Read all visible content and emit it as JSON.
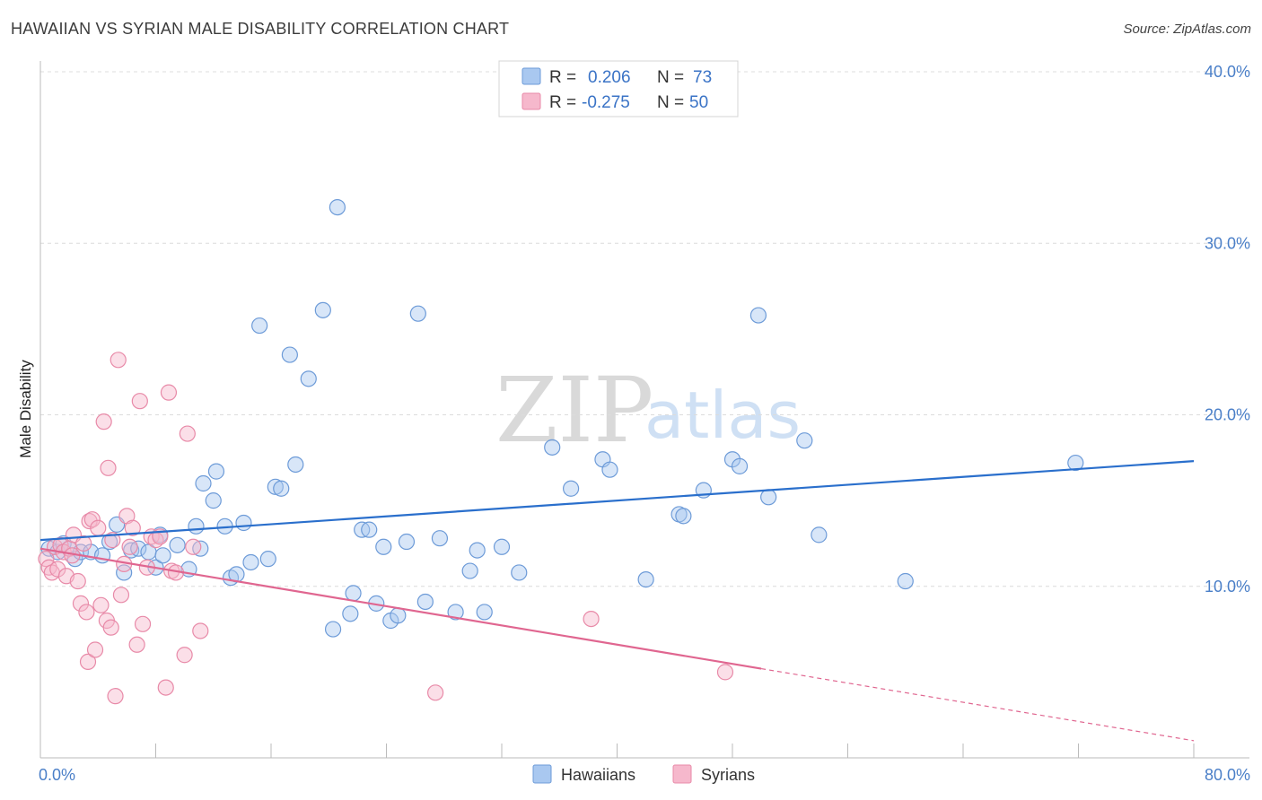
{
  "header": {
    "title": "HAWAIIAN VS SYRIAN MALE DISABILITY CORRELATION CHART",
    "source": "Source: ZipAtlas.com"
  },
  "watermark": {
    "zip": "ZIP",
    "atlas": "atlas"
  },
  "legend": {
    "rows": [
      {
        "r_label": "R =",
        "r_value": "0.206",
        "n_label": "N =",
        "n_value": "73"
      },
      {
        "r_label": "R =",
        "r_value": "-0.275",
        "n_label": "N =",
        "n_value": "50"
      }
    ]
  },
  "bottom_legend": {
    "items": [
      "Hawaiians",
      "Syrians"
    ]
  },
  "colors": {
    "hawaiians_fill": "#a9c8f0",
    "hawaiians_stroke": "#6d9bd8",
    "hawaiians_line": "#2a6fcc",
    "syrians_fill": "#f6b8cc",
    "syrians_stroke": "#e88aa8",
    "syrians_line": "#e06690"
  },
  "chart_data": {
    "type": "scatter",
    "title": "HAWAIIAN VS SYRIAN MALE DISABILITY CORRELATION CHART",
    "xlabel": "",
    "ylabel": "Male Disability",
    "xlim": [
      0,
      80
    ],
    "ylim": [
      0,
      40
    ],
    "x_tick_labels": [
      "0.0%",
      "80.0%"
    ],
    "y_ticks": [
      10,
      20,
      30,
      40
    ],
    "y_tick_labels": [
      "10.0%",
      "20.0%",
      "30.0%",
      "40.0%"
    ],
    "grid": true,
    "series": [
      {
        "name": "Hawaiians",
        "r": 0.206,
        "n": 73,
        "trend": {
          "x0": 0,
          "y0": 12.7,
          "x1": 80,
          "y1": 17.3,
          "dashed_from": null
        },
        "points": [
          [
            0.6,
            12.2
          ],
          [
            1.2,
            12.0
          ],
          [
            1.6,
            12.5
          ],
          [
            2.0,
            12.2
          ],
          [
            2.4,
            11.6
          ],
          [
            2.8,
            12.0
          ],
          [
            3.5,
            12.0
          ],
          [
            4.3,
            11.8
          ],
          [
            4.8,
            12.6
          ],
          [
            5.3,
            13.6
          ],
          [
            5.8,
            10.8
          ],
          [
            6.3,
            12.1
          ],
          [
            6.8,
            12.2
          ],
          [
            7.5,
            12.0
          ],
          [
            8.0,
            11.1
          ],
          [
            8.3,
            13.0
          ],
          [
            8.5,
            11.8
          ],
          [
            9.5,
            12.4
          ],
          [
            10.3,
            11.0
          ],
          [
            10.8,
            13.5
          ],
          [
            11.1,
            12.2
          ],
          [
            11.3,
            16.0
          ],
          [
            12.0,
            15.0
          ],
          [
            12.2,
            16.7
          ],
          [
            12.8,
            13.5
          ],
          [
            13.2,
            10.5
          ],
          [
            13.6,
            10.7
          ],
          [
            14.1,
            13.7
          ],
          [
            14.6,
            11.4
          ],
          [
            15.2,
            25.2
          ],
          [
            15.8,
            11.6
          ],
          [
            16.3,
            15.8
          ],
          [
            16.7,
            15.7
          ],
          [
            17.3,
            23.5
          ],
          [
            17.7,
            17.1
          ],
          [
            18.6,
            22.1
          ],
          [
            19.6,
            26.1
          ],
          [
            20.3,
            7.5
          ],
          [
            20.6,
            32.1
          ],
          [
            21.5,
            8.4
          ],
          [
            21.7,
            9.6
          ],
          [
            22.3,
            13.3
          ],
          [
            22.8,
            13.3
          ],
          [
            23.3,
            9.0
          ],
          [
            23.8,
            12.3
          ],
          [
            24.3,
            8.0
          ],
          [
            24.8,
            8.3
          ],
          [
            25.4,
            12.6
          ],
          [
            26.2,
            25.9
          ],
          [
            26.7,
            9.1
          ],
          [
            27.7,
            12.8
          ],
          [
            28.8,
            8.5
          ],
          [
            29.8,
            10.9
          ],
          [
            30.3,
            12.1
          ],
          [
            30.8,
            8.5
          ],
          [
            32.0,
            12.3
          ],
          [
            33.2,
            10.8
          ],
          [
            35.5,
            18.1
          ],
          [
            36.8,
            15.7
          ],
          [
            39.0,
            17.4
          ],
          [
            39.5,
            16.8
          ],
          [
            42.0,
            10.4
          ],
          [
            44.3,
            14.2
          ],
          [
            44.6,
            14.1
          ],
          [
            46.0,
            15.6
          ],
          [
            48.0,
            17.4
          ],
          [
            48.5,
            17.0
          ],
          [
            49.8,
            25.8
          ],
          [
            50.5,
            15.2
          ],
          [
            53.0,
            18.5
          ],
          [
            54.0,
            13.0
          ],
          [
            60.0,
            10.3
          ],
          [
            71.8,
            17.2
          ]
        ]
      },
      {
        "name": "Syrians",
        "r": -0.275,
        "n": 50,
        "trend": {
          "x0": 0,
          "y0": 12.2,
          "x1": 80,
          "y1": 1.0,
          "dashed_from": 50
        },
        "points": [
          [
            0.4,
            11.6
          ],
          [
            0.6,
            11.1
          ],
          [
            0.8,
            10.8
          ],
          [
            1.0,
            12.3
          ],
          [
            1.2,
            11.0
          ],
          [
            1.4,
            12.4
          ],
          [
            1.6,
            12.0
          ],
          [
            1.8,
            10.6
          ],
          [
            2.0,
            12.2
          ],
          [
            2.2,
            11.8
          ],
          [
            2.3,
            13.0
          ],
          [
            2.6,
            10.3
          ],
          [
            2.8,
            9.0
          ],
          [
            3.0,
            12.5
          ],
          [
            3.2,
            8.5
          ],
          [
            3.3,
            5.6
          ],
          [
            3.4,
            13.8
          ],
          [
            3.6,
            13.9
          ],
          [
            3.8,
            6.3
          ],
          [
            4.0,
            13.4
          ],
          [
            4.2,
            8.9
          ],
          [
            4.4,
            19.6
          ],
          [
            4.6,
            8.0
          ],
          [
            4.7,
            16.9
          ],
          [
            4.9,
            7.6
          ],
          [
            5.0,
            12.7
          ],
          [
            5.2,
            3.6
          ],
          [
            5.4,
            23.2
          ],
          [
            5.6,
            9.5
          ],
          [
            5.8,
            11.3
          ],
          [
            6.0,
            14.1
          ],
          [
            6.2,
            12.3
          ],
          [
            6.4,
            13.4
          ],
          [
            6.7,
            6.6
          ],
          [
            6.9,
            20.8
          ],
          [
            7.1,
            7.8
          ],
          [
            7.4,
            11.1
          ],
          [
            7.7,
            12.9
          ],
          [
            8.0,
            12.7
          ],
          [
            8.3,
            12.9
          ],
          [
            8.7,
            4.1
          ],
          [
            8.9,
            21.3
          ],
          [
            9.1,
            10.9
          ],
          [
            9.4,
            10.8
          ],
          [
            10.0,
            6.0
          ],
          [
            10.2,
            18.9
          ],
          [
            10.6,
            12.3
          ],
          [
            11.1,
            7.4
          ],
          [
            27.4,
            3.8
          ],
          [
            38.2,
            8.1
          ]
        ]
      }
    ],
    "extra_syrian_point": [
      47.5,
      5.0
    ]
  }
}
